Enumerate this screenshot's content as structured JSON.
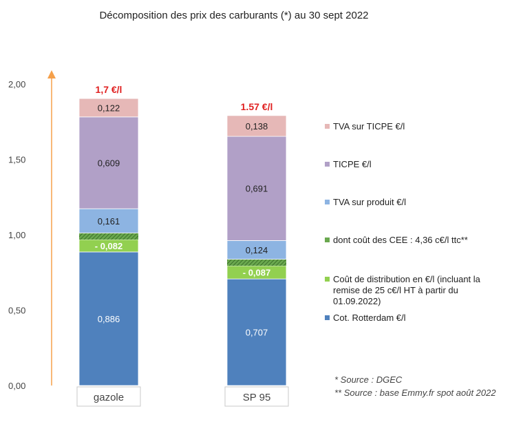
{
  "chart_data": {
    "type": "bar",
    "stacked": true,
    "title": "Décomposition des prix des carburants (*) au 30 sept 2022",
    "xlabel": "",
    "ylabel": "",
    "ylim": [
      0,
      2.0
    ],
    "y_ticks": [
      "0,00",
      "0,50",
      "1,00",
      "1,50",
      "2,00"
    ],
    "y_tick_values": [
      0,
      0.5,
      1.0,
      1.5,
      2.0
    ],
    "categories": [
      "gazole",
      "SP 95"
    ],
    "totals": [
      "1,7 €/l",
      "1.57 €/l"
    ],
    "series": [
      {
        "name": "Cot. Rotterdam €/l",
        "color": "#4f81bd",
        "values": [
          0.886,
          0.707
        ],
        "labels": [
          "0,886",
          "0,707"
        ]
      },
      {
        "name": "Coût de distribution en €/l (incluant la remise de 25 c€/l HT à partir du 01.09.2022)",
        "color": "#92d050",
        "values": [
          -0.082,
          -0.087
        ],
        "labels": [
          "- 0,082",
          "- 0,087"
        ]
      },
      {
        "name": "dont coût des CEE : 4,36 c€/l ttc**",
        "color": "#6aa84f",
        "values": [
          0.0436,
          0.0436
        ],
        "labels": [
          "",
          ""
        ]
      },
      {
        "name": "TVA sur produit €/l",
        "color": "#8db4e2",
        "values": [
          0.161,
          0.124
        ],
        "labels": [
          "0,161",
          "0,124"
        ]
      },
      {
        "name": "TICPE €/l",
        "color": "#b1a0c7",
        "values": [
          0.609,
          0.691
        ],
        "labels": [
          "0,609",
          "0,691"
        ]
      },
      {
        "name": "TVA sur TICPE €/l",
        "color": "#e6b8b7",
        "values": [
          0.122,
          0.138
        ],
        "labels": [
          "0,122",
          "0,138"
        ]
      }
    ],
    "legend_order": [
      5,
      4,
      3,
      2,
      1,
      0
    ],
    "legend_position": "right",
    "grid": false,
    "axis_arrow_color": "#f5a04a"
  },
  "sources": [
    "* Source : DGEC",
    "** Source : base Emmy.fr spot août 2022"
  ]
}
